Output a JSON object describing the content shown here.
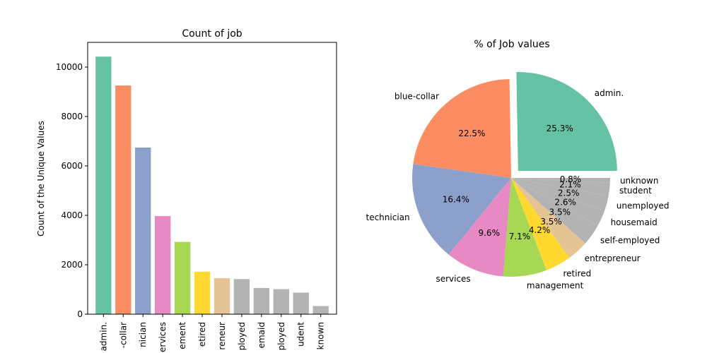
{
  "chart_data": [
    {
      "type": "bar",
      "title": "Count of job",
      "xlabel": "",
      "ylabel": "Count of the Unique Values",
      "ylim": [
        0,
        11000
      ],
      "yticks": [
        0,
        2000,
        4000,
        6000,
        8000,
        10000
      ],
      "categories": [
        "admin.",
        "blue-collar",
        "technician",
        "services",
        "management",
        "retired",
        "entrepreneur",
        "self-employed",
        "housemaid",
        "unemployed",
        "student",
        "unknown"
      ],
      "tick_labels_visible": [
        "admin.",
        "-collar",
        "nician",
        "ervices",
        "ement",
        "etired",
        "reneur",
        "ployed",
        "emaid",
        "ployed",
        "udent",
        "known"
      ],
      "values": [
        10422,
        9254,
        6743,
        3969,
        2924,
        1720,
        1456,
        1421,
        1060,
        1014,
        875,
        330
      ],
      "colors": [
        "#66c2a5",
        "#fc8d62",
        "#8da0cb",
        "#e78ac3",
        "#a6d854",
        "#ffd92f",
        "#e5c494",
        "#b3b3b3",
        "#b3b3b3",
        "#b3b3b3",
        "#b3b3b3",
        "#b3b3b3"
      ]
    },
    {
      "type": "pie",
      "title": "% of Job values",
      "labels": [
        "admin.",
        "blue-collar",
        "technician",
        "services",
        "management",
        "retired",
        "entrepreneur",
        "self-employed",
        "housemaid",
        "unemployed",
        "student",
        "unknown"
      ],
      "values": [
        25.3,
        22.5,
        16.4,
        9.6,
        7.1,
        4.2,
        3.5,
        3.5,
        2.6,
        2.5,
        2.1,
        0.8
      ],
      "value_labels": [
        "25.3%",
        "22.5%",
        "16.4%",
        "9.6%",
        "7.1%",
        "4.2%",
        "3.5%",
        "3.5%",
        "2.6%",
        "2.5%",
        "2.1%",
        "0.8%"
      ],
      "explode": [
        0.1,
        0,
        0,
        0,
        0,
        0,
        0,
        0,
        0,
        0,
        0,
        0
      ],
      "colors": [
        "#66c2a5",
        "#fc8d62",
        "#8da0cb",
        "#e78ac3",
        "#a6d854",
        "#ffd92f",
        "#e5c494",
        "#b3b3b3",
        "#b3b3b3",
        "#b3b3b3",
        "#b3b3b3",
        "#b3b3b3"
      ]
    }
  ]
}
